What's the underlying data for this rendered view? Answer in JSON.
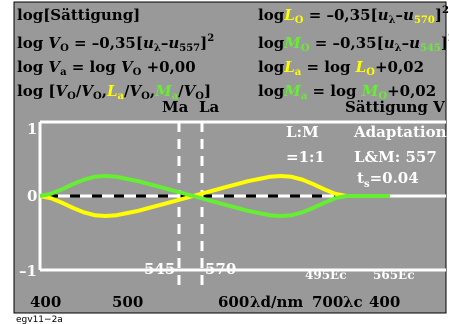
{
  "header": {
    "left": [
      {
        "parts": [
          {
            "t": "log[Sättigung]"
          }
        ]
      },
      {
        "parts": [
          {
            "t": "log "
          },
          {
            "t": "V",
            "i": true
          },
          {
            "t": "O",
            "sub": true
          },
          {
            "t": " = –0,35["
          },
          {
            "t": "u",
            "i": true
          },
          {
            "t": "λ",
            "sub": true
          },
          {
            "t": "–"
          },
          {
            "t": "u",
            "i": true
          },
          {
            "t": "557",
            "sub": true
          },
          {
            "t": "]"
          },
          {
            "t": "2",
            "sup": true
          }
        ]
      },
      {
        "parts": [
          {
            "t": "log "
          },
          {
            "t": "V",
            "i": true
          },
          {
            "t": "a",
            "sub": true
          },
          {
            "t": " = log "
          },
          {
            "t": "V",
            "i": true
          },
          {
            "t": "O",
            "sub": true
          },
          {
            "t": " +0,00"
          }
        ]
      },
      {
        "parts": [
          {
            "t": "log ["
          },
          {
            "t": "V",
            "i": true
          },
          {
            "t": "O",
            "sub": true
          },
          {
            "t": "/"
          },
          {
            "t": "V",
            "i": true
          },
          {
            "t": "O",
            "sub": true
          },
          {
            "t": ","
          },
          {
            "t": "L",
            "i": true,
            "c": "#ffff00"
          },
          {
            "t": "a",
            "sub": true,
            "c": "#ffff00"
          },
          {
            "t": "/"
          },
          {
            "t": "V",
            "i": true
          },
          {
            "t": "O",
            "sub": true
          },
          {
            "t": ","
          },
          {
            "t": "M",
            "i": true,
            "c": "#66ee33"
          },
          {
            "t": "a",
            "sub": true,
            "c": "#66ee33"
          },
          {
            "t": "/"
          },
          {
            "t": "V",
            "i": true
          },
          {
            "t": "O",
            "sub": true
          },
          {
            "t": "]"
          }
        ]
      }
    ],
    "right": [
      {
        "parts": [
          {
            "t": "log"
          },
          {
            "t": "L",
            "i": true,
            "c": "#ffff00"
          },
          {
            "t": "O",
            "sub": true,
            "c": "#ffff00"
          },
          {
            "t": " = –0,35["
          },
          {
            "t": "u",
            "i": true
          },
          {
            "t": "λ",
            "sub": true
          },
          {
            "t": "–"
          },
          {
            "t": "u",
            "i": true
          },
          {
            "t": "570",
            "sub": true,
            "c": "#ffff00"
          },
          {
            "t": "]"
          },
          {
            "t": "2",
            "sup": true
          }
        ]
      },
      {
        "parts": [
          {
            "t": "log"
          },
          {
            "t": "M",
            "i": true,
            "c": "#66ee33"
          },
          {
            "t": "O",
            "sub": true,
            "c": "#66ee33"
          },
          {
            "t": " = –0,35["
          },
          {
            "t": "u",
            "i": true
          },
          {
            "t": "λ",
            "sub": true
          },
          {
            "t": "–"
          },
          {
            "t": "u",
            "i": true
          },
          {
            "t": "545",
            "sub": true,
            "c": "#66ee33"
          },
          {
            "t": "]"
          },
          {
            "t": "2",
            "sup": true
          }
        ]
      },
      {
        "parts": [
          {
            "t": "log"
          },
          {
            "t": "L",
            "i": true,
            "c": "#ffff00"
          },
          {
            "t": "a",
            "sub": true,
            "c": "#ffff00"
          },
          {
            "t": " = log "
          },
          {
            "t": "L",
            "i": true,
            "c": "#ffff00"
          },
          {
            "t": "O",
            "sub": true,
            "c": "#ffff00"
          },
          {
            "t": "+0,02"
          }
        ]
      },
      {
        "parts": [
          {
            "t": "log"
          },
          {
            "t": "M",
            "i": true,
            "c": "#66ee33"
          },
          {
            "t": "a",
            "sub": true,
            "c": "#66ee33"
          },
          {
            "t": " = log "
          },
          {
            "t": "M",
            "i": true,
            "c": "#66ee33"
          },
          {
            "t": "O",
            "sub": true,
            "c": "#66ee33"
          },
          {
            "t": "+0,02"
          }
        ]
      }
    ],
    "saettigung_v": "Sättigung V",
    "ma_label": "Ma",
    "la_label": "La"
  },
  "annotations": {
    "lm": "L:M",
    "ratio": "=1:1",
    "adaptation": "Adaptation",
    "lm_value": "L&M: 557",
    "ts_main": "t",
    "ts_sub": "s",
    "ts_value": "=0.04",
    "marker_545": "545",
    "marker_570": "570",
    "ec_495": "495Ec",
    "ec_565": "565Ec"
  },
  "axis": {
    "x_ticks": [
      "400",
      "500",
      "600",
      "700",
      "400"
    ],
    "x_unit": "λd/nm",
    "x_unit_c": "λc",
    "y_ticks": [
      "1",
      "0",
      "–1"
    ]
  },
  "footer_code": "egv11−2a",
  "colors": {
    "plot_bg": "#999999",
    "yellow": "#ffff00",
    "green": "#66ee33",
    "white": "#ffffff",
    "black": "#000000"
  },
  "chart_data": {
    "type": "line",
    "xlabel": "λd/nm",
    "xlim": [
      400,
      720
    ],
    "ylim": [
      -1.35,
      1.35
    ],
    "series": [
      {
        "name": "L",
        "color": "#ffff00",
        "x": [
          400,
          410,
          420,
          430,
          440,
          450,
          460,
          470,
          480,
          490,
          500,
          510,
          520,
          530,
          540,
          550,
          560,
          570,
          580,
          590,
          600,
          610,
          620,
          630,
          640,
          650,
          660,
          670,
          680,
          690,
          700,
          710,
          720
        ],
        "y": [
          0.0,
          -0.03,
          -0.09,
          -0.16,
          -0.22,
          -0.26,
          -0.27,
          -0.26,
          -0.23,
          -0.2,
          -0.16,
          -0.12,
          -0.08,
          -0.04,
          0.0,
          0.04,
          0.08,
          0.12,
          0.16,
          0.2,
          0.23,
          0.26,
          0.27,
          0.26,
          0.22,
          0.16,
          0.09,
          0.03,
          0.0,
          0.0,
          0.0,
          0.0,
          0.0
        ]
      },
      {
        "name": "M",
        "color": "#66ee33",
        "x": [
          400,
          410,
          420,
          430,
          440,
          450,
          460,
          470,
          480,
          490,
          500,
          510,
          520,
          530,
          540,
          550,
          560,
          570,
          580,
          590,
          600,
          610,
          620,
          630,
          640,
          650,
          660,
          670,
          680,
          690,
          700,
          710,
          720
        ],
        "y": [
          0.0,
          0.03,
          0.09,
          0.16,
          0.22,
          0.26,
          0.27,
          0.26,
          0.23,
          0.2,
          0.16,
          0.12,
          0.08,
          0.04,
          0.0,
          -0.04,
          -0.08,
          -0.12,
          -0.16,
          -0.2,
          -0.23,
          -0.26,
          -0.27,
          -0.26,
          -0.22,
          -0.16,
          -0.09,
          -0.03,
          0.0,
          0.0,
          0.0,
          0.0,
          0.0
        ]
      }
    ]
  }
}
